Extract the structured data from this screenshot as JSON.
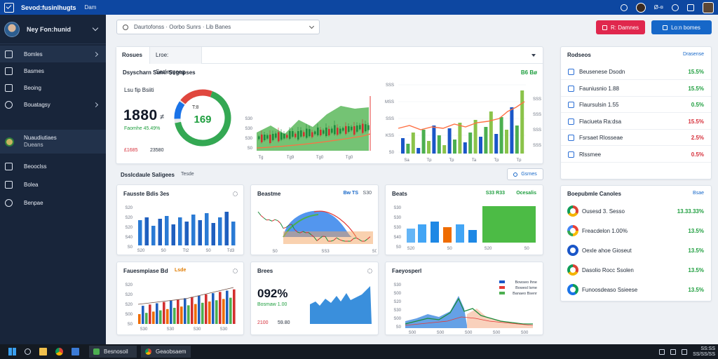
{
  "topbar": {
    "title": "Sevod:fusinlhugts",
    "subtitle": "Dam",
    "user_label": "Ø-¤"
  },
  "sidebar": {
    "profile_name": "Ney Fon:hunid",
    "items": [
      {
        "label": "Bomles",
        "icon": "home-icon"
      },
      {
        "label": "Basmes",
        "icon": "chart-icon"
      },
      {
        "label": "Beoing",
        "icon": "bank-icon"
      },
      {
        "label": "Bouatagsy",
        "icon": "people-icon"
      },
      {
        "label": "Nuaudiutiaes",
        "sub": "Dueans",
        "icon": "globe-icon"
      },
      {
        "label": "Beooclss",
        "icon": "calendar-icon"
      },
      {
        "label": "Bolea",
        "icon": "document-icon"
      },
      {
        "label": "Benpae",
        "icon": "settings-icon"
      }
    ]
  },
  "search": {
    "value": "Daurtofonss · Oorbo Sunrs · Lib Banes"
  },
  "header_buttons": {
    "red_label": "R: Damnes",
    "blue_label": "Lo:n bomes"
  },
  "top_card": {
    "tabs": [
      "Rosues",
      "Lroe: Sezlaygeeg"
    ],
    "title": "Dsyscharn Sumr Segnpses",
    "badge": "B6 Bø",
    "kpi_label": "Lsu fip Bsiiti",
    "kpi_value": "1880",
    "kpi_unit": "≠",
    "kpi_change": "Faomhe 45.49%",
    "kpi_footer_red": "£1685",
    "kpi_footer": "23580",
    "gauge_label": "T:8",
    "gauge_value": "169",
    "gauge_percent": 72,
    "candle_ylabels": [
      "S30",
      "S30",
      "S30",
      "S0"
    ],
    "candle_xlabels": [
      "Tg",
      "Tg9",
      "Tg0",
      "Tg0"
    ],
    "combo_ylabels": [
      "SSS",
      "MSS",
      "SSS",
      "KSS",
      "S0"
    ],
    "combo_yright": [
      "SSS",
      "SSS",
      "SSS",
      "SSS"
    ],
    "combo_xlabels": [
      "Sa",
      "Tp",
      "Tp",
      "Ta",
      "Tp",
      "Tp"
    ]
  },
  "section": {
    "title": "Dsslcdaule Saligees",
    "subtitle": "Tesde",
    "button": "Gsrnes"
  },
  "mini_cards": [
    {
      "title": "Fausste Bdis 3es",
      "ylabels": [
        "S20",
        "S20",
        "S20",
        "S40",
        "S0"
      ],
      "xlabels": [
        "S20",
        "S0",
        "Tt2",
        "S0",
        "Td3"
      ]
    },
    {
      "title": "Beastme",
      "legend": "Bw TS",
      "value": "S30",
      "ylabels": [],
      "xlabels": [
        "S0",
        "SS3",
        "S00"
      ]
    },
    {
      "title": "Beats",
      "legend": "S33 R33",
      "value": "Ocesalis",
      "ylabels": [
        "S30",
        "S30",
        "S30",
        "S40",
        "S0"
      ],
      "xlabels": [
        "S20",
        "S0",
        "S20",
        "S0"
      ]
    },
    {
      "title": "Fauesmpiase Bd",
      "legend": "Lsde",
      "ylabels": [
        "S20",
        "S20",
        "S20",
        "S00",
        "S0"
      ],
      "xlabels": [
        "S30",
        "S30",
        "S30",
        "S30"
      ]
    },
    {
      "title": "Brees",
      "value": "092%",
      "change": "Bosmaw 1.00",
      "footer_red": "2100",
      "footer": "59.80"
    },
    {
      "title": "Faeyosperl",
      "legend": [
        "Bowseo lhne",
        "Bowesl lsme",
        "Banaeo Bsenr"
      ],
      "ylabels": [
        "S30",
        "S00",
        "S20",
        "S30",
        "S00",
        "S0"
      ],
      "xlabels": [
        "S00",
        "S00",
        "S00",
        "S00",
        "S00"
      ]
    }
  ],
  "right_list": {
    "title": "Rodseos",
    "link": "Drasense",
    "rows": [
      {
        "label": "Beusenese Dsodn",
        "value": "15.5%",
        "color": "green"
      },
      {
        "label": "Fauniusnio 1.88",
        "value": "15.5%",
        "color": "green"
      },
      {
        "label": "Flaursulsin 1.55",
        "value": "0.5%",
        "color": "green"
      },
      {
        "label": "Flaciueta Ra:dsa",
        "value": "15.5%",
        "color": "red"
      },
      {
        "label": "Fsrsaet Rlosseae",
        "value": "2.5%",
        "color": "red"
      },
      {
        "label": "Rlssmee",
        "value": "0.5%",
        "color": "red"
      }
    ]
  },
  "social_list": {
    "title": "Boepubmle Canoles",
    "link": "Bsae",
    "rows": [
      {
        "label": "Ousesd 3. Sesso",
        "value": "13.33.33%",
        "ring": "chrome"
      },
      {
        "label": "Freacdelon 1.00%",
        "value": "13.5%",
        "ring": "google"
      },
      {
        "label": "Oexle ahoe Gioseut",
        "value": "13.5%",
        "ring": "blue"
      },
      {
        "label": "Dasolio Rocc Ssolen",
        "value": "13.5%",
        "ring": "chrome"
      },
      {
        "label": "Funoosdeaso Ssieese",
        "value": "13.5%",
        "ring": "edge"
      }
    ]
  },
  "taskbar": {
    "apps": [
      "Besnosoil",
      "Geaobsaem"
    ],
    "clock_time": "SS:SS",
    "clock_date": "SS/SS/SS"
  },
  "colors": {
    "accent": "#0d47a1",
    "sidebar": "#18253a",
    "green": "#1e9e3e",
    "red": "#d62f3a",
    "blue": "#1667c8"
  }
}
